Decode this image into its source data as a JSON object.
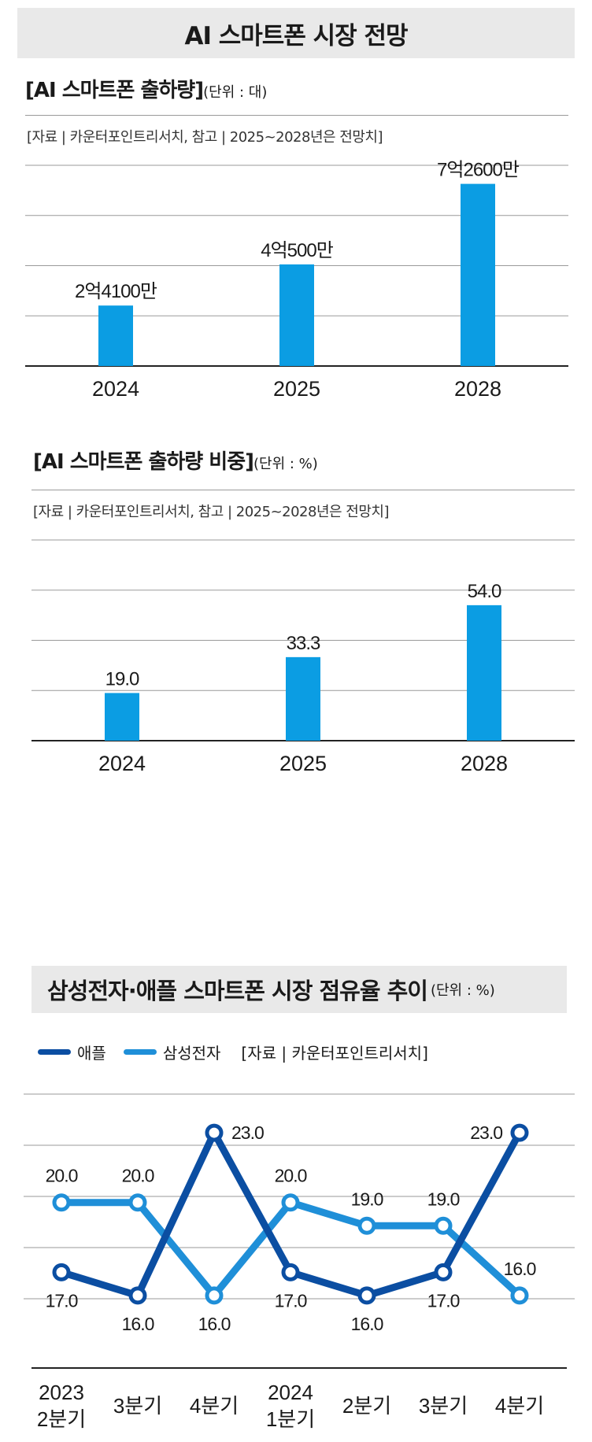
{
  "page_title": "AI 스마트폰 시장 전망",
  "colors": {
    "bar": "#0b9de3",
    "apple": "#0b4ea2",
    "samsung": "#1f8fd8",
    "grid": "#9a9a9a",
    "axis": "#222222"
  },
  "chart_data": [
    {
      "type": "bar",
      "title": "[AI 스마트폰 출하량]",
      "unit": "(단위 : 대)",
      "source": "[자료 | 카운터포인트리서치, 참고 | 2025~2028년은 전망치]",
      "categories": [
        "2024",
        "2025",
        "2028"
      ],
      "values": [
        241000000,
        405000000,
        726000000
      ],
      "value_labels": [
        "2억4100만",
        "4억500만",
        "7억2600만"
      ],
      "ylim": [
        0,
        800000000
      ],
      "grid": true
    },
    {
      "type": "bar",
      "title": "[AI 스마트폰 출하량 비중]",
      "unit": "(단위 : %)",
      "source": "[자료 | 카운터포인트리서치, 참고 | 2025~2028년은 전망치]",
      "categories": [
        "2024",
        "2025",
        "2028"
      ],
      "values": [
        19.0,
        33.3,
        54.0
      ],
      "value_labels": [
        "19.0",
        "33.3",
        "54.0"
      ],
      "ylim": [
        0,
        80
      ],
      "grid": true
    },
    {
      "type": "line",
      "title": "삼성전자·애플 스마트폰 시장 점유율 추이",
      "unit": "(단위 : %)",
      "source": "[자료 | 카운터포인트리서치]",
      "categories": [
        [
          "2023",
          "2분기"
        ],
        [
          "3분기"
        ],
        [
          "4분기"
        ],
        [
          "2024",
          "1분기"
        ],
        [
          "2분기"
        ],
        [
          "3분기"
        ],
        [
          "4분기"
        ]
      ],
      "series": [
        {
          "name": "애플",
          "values": [
            17.0,
            16.0,
            23.0,
            17.0,
            16.0,
            17.0,
            23.0
          ],
          "labels": [
            "17.0",
            "16.0",
            "23.0",
            "17.0",
            "16.0",
            "17.0",
            "23.0"
          ]
        },
        {
          "name": "삼성전자",
          "values": [
            20.0,
            20.0,
            16.0,
            20.0,
            19.0,
            19.0,
            16.0
          ],
          "labels": [
            "20.0",
            "20.0",
            "16.0",
            "20.0",
            "19.0",
            "19.0",
            "16.0"
          ]
        }
      ],
      "ylim": [
        14,
        25
      ],
      "grid": true,
      "legend": "top-left"
    }
  ]
}
